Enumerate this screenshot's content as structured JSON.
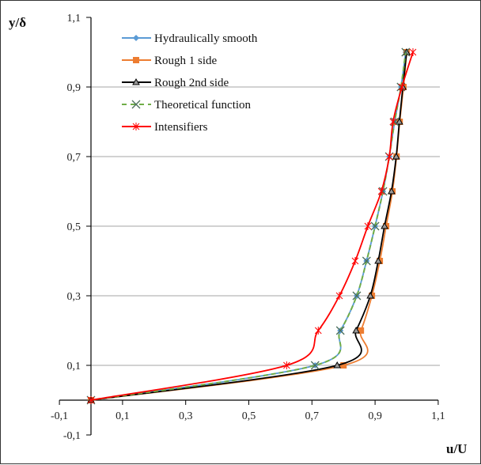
{
  "chart_data": {
    "type": "line",
    "xlabel": "u/U",
    "ylabel": "y/δ",
    "xlim": [
      -0.1,
      1.1
    ],
    "ylim": [
      -0.1,
      1.1
    ],
    "xticks": [
      "-0,1",
      "0,1",
      "0,3",
      "0,5",
      "0,7",
      "0,9",
      "1,1"
    ],
    "yticks": [
      "-0,1",
      "0,1",
      "0,3",
      "0,5",
      "0,7",
      "0,9",
      "1,1"
    ],
    "grid": "horizontal",
    "legend_position": "top-left",
    "y": [
      0,
      0.1,
      0.2,
      0.3,
      0.4,
      0.5,
      0.6,
      0.7,
      0.8,
      0.9,
      1.0
    ],
    "series": [
      {
        "name": "Hydraulically smooth",
        "color": "#5b9bd5",
        "marker": "diamond",
        "dash": false,
        "x": [
          0,
          0.71,
          0.79,
          0.842,
          0.873,
          0.9,
          0.925,
          0.945,
          0.962,
          0.982,
          0.997
        ]
      },
      {
        "name": "Rough 1 side",
        "color": "#ed7d31",
        "marker": "square",
        "dash": false,
        "x": [
          0,
          0.8,
          0.855,
          0.89,
          0.915,
          0.935,
          0.955,
          0.968,
          0.978,
          0.99,
          1.0
        ]
      },
      {
        "name": "Rough 2nd side",
        "color": "#000000",
        "marker": "triangle",
        "dash": false,
        "x": [
          0,
          0.78,
          0.84,
          0.885,
          0.91,
          0.93,
          0.952,
          0.967,
          0.977,
          0.988,
          1.0
        ]
      },
      {
        "name": "Theoretical function",
        "color": "#70ad47",
        "marker": "x",
        "dash": true,
        "x": [
          0,
          0.71,
          0.79,
          0.842,
          0.873,
          0.9,
          0.925,
          0.945,
          0.962,
          0.982,
          0.997
        ]
      },
      {
        "name": "Intensifiers",
        "color": "#ff0000",
        "marker": "star",
        "dash": false,
        "x": [
          0,
          0.62,
          0.72,
          0.787,
          0.837,
          0.877,
          0.92,
          0.945,
          0.957,
          0.985,
          1.02
        ]
      }
    ]
  }
}
